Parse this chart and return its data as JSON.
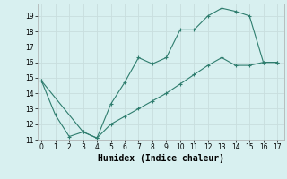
{
  "title": "",
  "xlabel": "Humidex (Indice chaleur)",
  "background_color": "#d8f0f0",
  "grid_color": "#c8dede",
  "line_color": "#2e7d6e",
  "line1_x": [
    0,
    1,
    2,
    3,
    4,
    5,
    6,
    7,
    8,
    9,
    10,
    11,
    12,
    13,
    14,
    15,
    16,
    17
  ],
  "line1_y": [
    14.8,
    12.6,
    11.2,
    11.5,
    11.1,
    13.3,
    14.7,
    16.3,
    15.9,
    16.3,
    18.1,
    18.1,
    19.0,
    19.5,
    19.3,
    19.0,
    16.0,
    16.0
  ],
  "line2_x": [
    0,
    3,
    4,
    5,
    6,
    7,
    8,
    9,
    10,
    11,
    12,
    13,
    14,
    15,
    16,
    17
  ],
  "line2_y": [
    14.8,
    11.5,
    11.1,
    12.0,
    12.5,
    13.0,
    13.5,
    14.0,
    14.6,
    15.2,
    15.8,
    16.3,
    15.8,
    15.8,
    16.0,
    16.0
  ],
  "xlim": [
    -0.3,
    17.5
  ],
  "ylim": [
    11.0,
    19.8
  ],
  "xticks": [
    0,
    1,
    2,
    3,
    4,
    5,
    6,
    7,
    8,
    9,
    10,
    11,
    12,
    13,
    14,
    15,
    16,
    17
  ],
  "yticks": [
    11,
    12,
    13,
    14,
    15,
    16,
    17,
    18,
    19
  ],
  "tick_fontsize": 5.5,
  "xlabel_fontsize": 7,
  "marker": "+"
}
